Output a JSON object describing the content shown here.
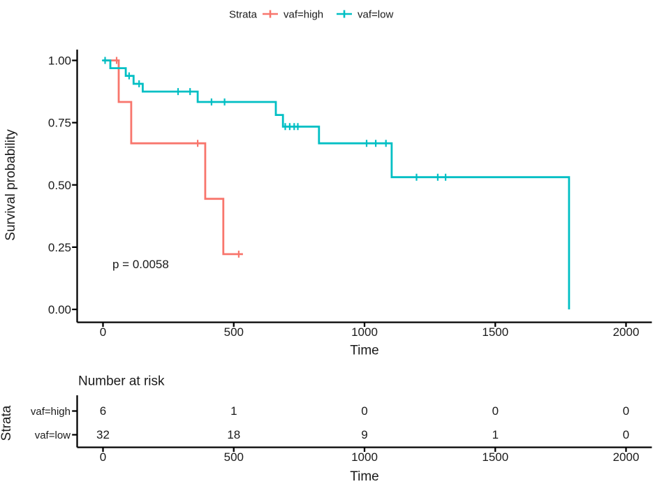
{
  "chart_data": {
    "type": "line",
    "subtype": "kaplan-meier-step",
    "xlabel": "Time",
    "ylabel": "Survival probability",
    "xlim": [
      0,
      2090
    ],
    "ylim": [
      0,
      1
    ],
    "grid": "off",
    "background": "#ffffff",
    "annotations": {
      "pvalue": "p = 0.0058"
    },
    "legend": {
      "title": "Strata",
      "position": "top",
      "items": [
        {
          "label": "vaf=high",
          "color": "#F8766D"
        },
        {
          "label": "vaf=low",
          "color": "#00BFC4"
        }
      ]
    },
    "x_ticks": {
      "values": [
        0,
        500,
        1000,
        1500,
        2000
      ],
      "labels": [
        "0",
        "500",
        "1000",
        "1500",
        "2000"
      ]
    },
    "y_ticks": {
      "values": [
        1.0,
        0.75,
        0.5,
        0.25,
        0.0
      ],
      "labels": [
        "1.00",
        "0.75",
        "0.50",
        "0.25",
        "0.00"
      ]
    },
    "series": [
      {
        "name": "vaf=high",
        "color": "#F8766D",
        "steps": [
          [
            0,
            1.0
          ],
          [
            60,
            0.833
          ],
          [
            108,
            0.667
          ],
          [
            391,
            0.444
          ],
          [
            460,
            0.222
          ]
        ],
        "end_time": 535,
        "censor_marks": [
          [
            52,
            1.0
          ],
          [
            362,
            0.667
          ],
          [
            519,
            0.222
          ]
        ]
      },
      {
        "name": "vaf=low",
        "color": "#00BFC4",
        "steps": [
          [
            0,
            1.0
          ],
          [
            28,
            0.969
          ],
          [
            87,
            0.938
          ],
          [
            117,
            0.906
          ],
          [
            152,
            0.875
          ],
          [
            362,
            0.833
          ],
          [
            661,
            0.781
          ],
          [
            688,
            0.734
          ],
          [
            826,
            0.667
          ],
          [
            1104,
            0.531
          ],
          [
            1782,
            0.0
          ]
        ],
        "end_time": 1782,
        "censor_marks": [
          [
            8,
            1.0
          ],
          [
            100,
            0.938
          ],
          [
            138,
            0.906
          ],
          [
            287,
            0.875
          ],
          [
            333,
            0.875
          ],
          [
            415,
            0.833
          ],
          [
            465,
            0.833
          ],
          [
            697,
            0.734
          ],
          [
            714,
            0.734
          ],
          [
            731,
            0.734
          ],
          [
            745,
            0.734
          ],
          [
            1008,
            0.667
          ],
          [
            1043,
            0.667
          ],
          [
            1082,
            0.667
          ],
          [
            1199,
            0.531
          ],
          [
            1280,
            0.531
          ],
          [
            1310,
            0.531
          ]
        ]
      }
    ],
    "risk_table": {
      "title": "Number at risk",
      "ylabel": "Strata",
      "xlabel": "Time",
      "x_ticks": {
        "values": [
          0,
          500,
          1000,
          1500,
          2000
        ],
        "labels": [
          "0",
          "500",
          "1000",
          "1500",
          "2000"
        ]
      },
      "rows": [
        {
          "label": "vaf=high",
          "color": "#F8766D",
          "counts": [
            "6",
            "1",
            "0",
            "0",
            "0"
          ]
        },
        {
          "label": "vaf=low",
          "color": "#00BFC4",
          "counts": [
            "32",
            "18",
            "9",
            "1",
            "0"
          ]
        }
      ]
    }
  }
}
